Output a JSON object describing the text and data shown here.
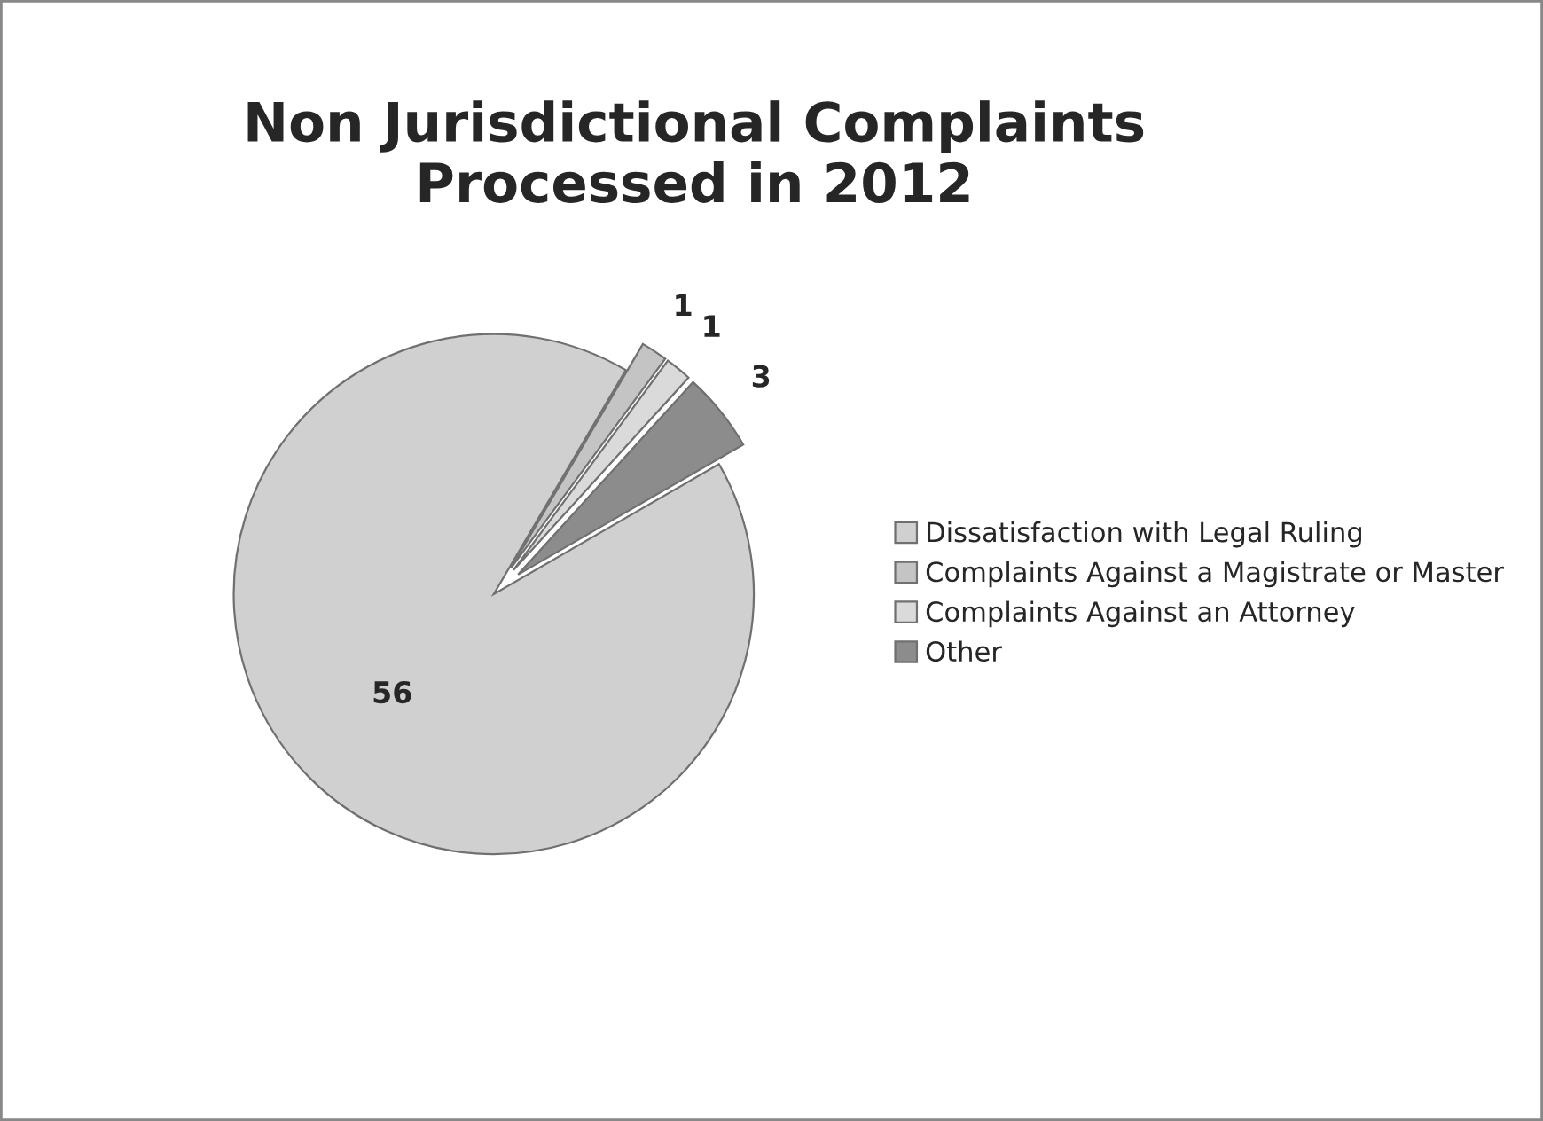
{
  "chart_data": {
    "type": "pie",
    "title": "Non Jurisdictional Complaints\nProcessed in 2012",
    "categories": [
      "Dissatisfaction with Legal Ruling",
      "Complaints Against a Magistrate or Master",
      "Complaints Against an Attorney",
      "Other"
    ],
    "values": [
      56,
      1,
      1,
      3
    ],
    "colors": [
      "#d0d0d0",
      "#c4c4c4",
      "#dadada",
      "#8c8c8c"
    ],
    "data_labels": true,
    "legend": "right"
  }
}
